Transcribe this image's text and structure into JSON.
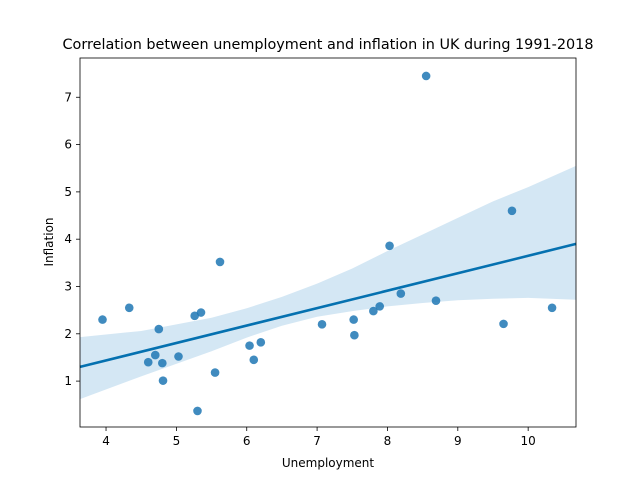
{
  "chart_data": {
    "type": "scatter",
    "title": "Correlation between unemployment and inflation in UK during 1991-2018",
    "xlabel": "Unemployment",
    "ylabel": "Inflation",
    "xlim": [
      3.63,
      10.68
    ],
    "ylim": [
      0.03,
      7.83
    ],
    "xticks": [
      4,
      5,
      6,
      7,
      8,
      9,
      10
    ],
    "yticks": [
      1,
      2,
      3,
      4,
      5,
      6,
      7
    ],
    "grid": false,
    "colors": {
      "points": "#1f77b4",
      "line": "#0571b0",
      "band": "#c6dff0"
    },
    "points": [
      {
        "x": 3.95,
        "y": 2.3
      },
      {
        "x": 4.33,
        "y": 2.55
      },
      {
        "x": 4.6,
        "y": 1.4
      },
      {
        "x": 4.7,
        "y": 1.55
      },
      {
        "x": 4.75,
        "y": 2.1
      },
      {
        "x": 4.8,
        "y": 1.38
      },
      {
        "x": 4.81,
        "y": 1.01
      },
      {
        "x": 5.03,
        "y": 1.52
      },
      {
        "x": 5.26,
        "y": 2.38
      },
      {
        "x": 5.3,
        "y": 0.37
      },
      {
        "x": 5.35,
        "y": 2.45
      },
      {
        "x": 5.55,
        "y": 1.18
      },
      {
        "x": 5.62,
        "y": 3.52
      },
      {
        "x": 6.04,
        "y": 1.75
      },
      {
        "x": 6.1,
        "y": 1.45
      },
      {
        "x": 6.2,
        "y": 1.82
      },
      {
        "x": 7.07,
        "y": 2.2
      },
      {
        "x": 7.52,
        "y": 2.3
      },
      {
        "x": 7.53,
        "y": 1.97
      },
      {
        "x": 7.8,
        "y": 2.48
      },
      {
        "x": 7.89,
        "y": 2.58
      },
      {
        "x": 8.03,
        "y": 3.86
      },
      {
        "x": 8.19,
        "y": 2.85
      },
      {
        "x": 8.55,
        "y": 7.45
      },
      {
        "x": 8.69,
        "y": 2.7
      },
      {
        "x": 9.65,
        "y": 2.21
      },
      {
        "x": 9.77,
        "y": 4.6
      },
      {
        "x": 10.34,
        "y": 2.55
      }
    ],
    "regression": {
      "x": [
        3.63,
        10.68
      ],
      "y": [
        1.3,
        3.9
      ]
    },
    "confidence_band": {
      "x": [
        3.63,
        4.5,
        5.5,
        6.0,
        6.5,
        7.0,
        7.5,
        8.0,
        8.5,
        9.0,
        9.5,
        10.0,
        10.68
      ],
      "lower": [
        0.62,
        1.1,
        1.63,
        1.92,
        2.17,
        2.36,
        2.48,
        2.58,
        2.65,
        2.71,
        2.74,
        2.76,
        2.72
      ],
      "upper": [
        1.93,
        2.06,
        2.34,
        2.54,
        2.78,
        3.06,
        3.38,
        3.75,
        4.1,
        4.45,
        4.8,
        5.1,
        5.55
      ]
    }
  }
}
